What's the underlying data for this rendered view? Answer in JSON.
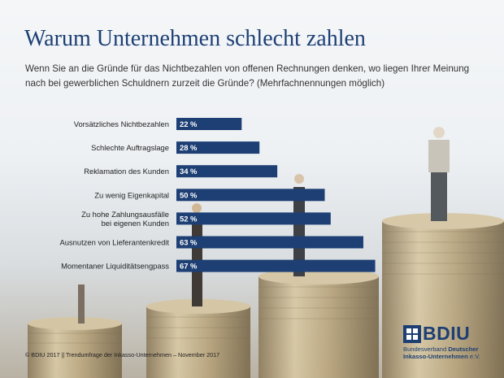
{
  "header": {
    "title": "Warum Unternehmen schlecht zahlen",
    "subtitle": "Wenn Sie an die Gründe für das Nichtbezahlen von offenen Rechnungen denken, wo liegen Ihrer Meinung nach bei gewerblichen Schuldnern zurzeit die Gründe? (Mehrfachnennungen möglich)"
  },
  "chart_data": {
    "type": "bar",
    "orientation": "horizontal",
    "categories": [
      "Vorsätzliches Nichtbezahlen",
      "Schlechte Auftragslage",
      "Reklamation des Kunden",
      "Zu wenig Eigenkapital",
      [
        "Zu hohe Zahlungsausfälle",
        "bei eigenen Kunden"
      ],
      "Ausnutzen von Lieferantenkredit",
      "Momentaner Liquiditätsengpass"
    ],
    "values": [
      22,
      28,
      34,
      50,
      52,
      63,
      67
    ],
    "value_labels": [
      "22 %",
      "28 %",
      "34 %",
      "50 %",
      "52 %",
      "63 %",
      "67 %"
    ],
    "unit": "%",
    "bar_color": "#1d3f74",
    "label_color": "#ffffff"
  },
  "footer": {
    "source": "© BDIU 2017  ||  Trendumfrage der Inkasso-Unternehmen – November 2017"
  },
  "logo": {
    "name": "BDIU",
    "line1_a": "Bundesverband ",
    "line1_b": "Deutscher",
    "line2_a": "Inkasso-Unternehmen",
    "line2_b": " e.V.",
    "color": "#1d3f74"
  }
}
